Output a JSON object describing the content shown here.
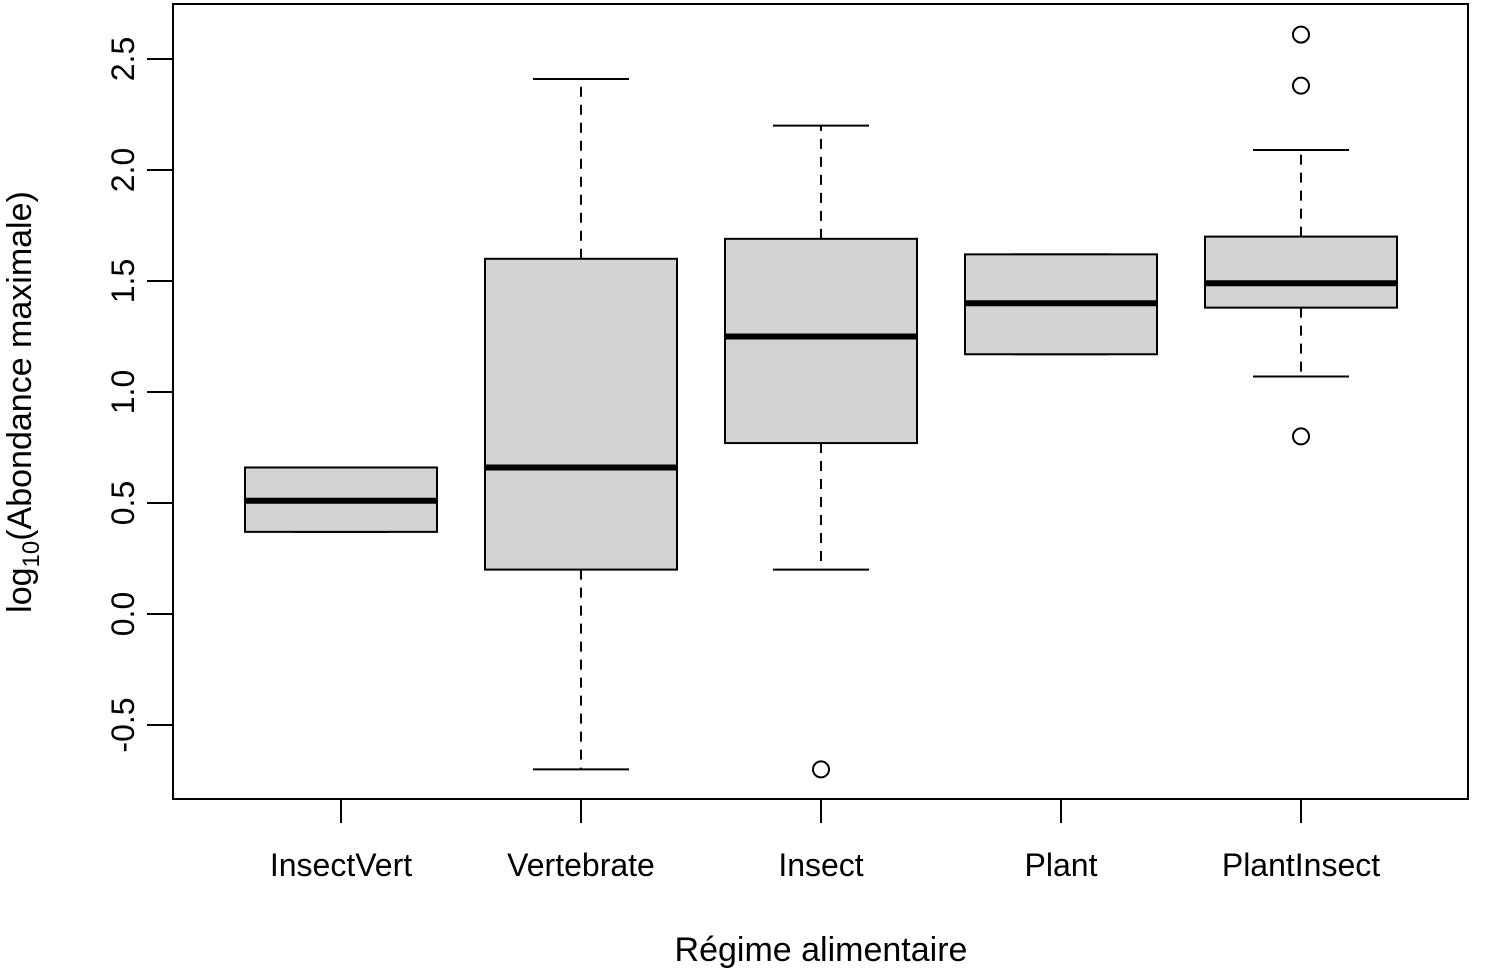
{
  "chart_data": {
    "type": "boxplot",
    "xlabel": "Régime alimentaire",
    "ylabel": {
      "prefix": "log",
      "subscript": "10",
      "suffix": "(Abondance maximale)"
    },
    "ylim": [
      -0.8,
      2.78
    ],
    "yticks": [
      {
        "value": -0.5,
        "label": "-0.5"
      },
      {
        "value": 0.0,
        "label": "0.0"
      },
      {
        "value": 0.5,
        "label": "0.5"
      },
      {
        "value": 1.0,
        "label": "1.0"
      },
      {
        "value": 1.5,
        "label": "1.5"
      },
      {
        "value": 2.0,
        "label": "2.0"
      },
      {
        "value": 2.5,
        "label": "2.5"
      }
    ],
    "categories": [
      "InsectVert",
      "Vertebrate",
      "Insect",
      "Plant",
      "PlantInsect"
    ],
    "boxes": [
      {
        "name": "InsectVert",
        "whisker_low": 0.37,
        "q1": 0.37,
        "median": 0.51,
        "q3": 0.66,
        "whisker_high": 0.66,
        "outliers": []
      },
      {
        "name": "Vertebrate",
        "whisker_low": -0.7,
        "q1": 0.2,
        "median": 0.66,
        "q3": 1.6,
        "whisker_high": 2.41,
        "outliers": []
      },
      {
        "name": "Insect",
        "whisker_low": 0.2,
        "q1": 0.77,
        "median": 1.25,
        "q3": 1.69,
        "whisker_high": 2.2,
        "outliers": [
          -0.7
        ]
      },
      {
        "name": "Plant",
        "whisker_low": 1.17,
        "q1": 1.17,
        "median": 1.4,
        "q3": 1.62,
        "whisker_high": 1.62,
        "outliers": []
      },
      {
        "name": "PlantInsect",
        "whisker_low": 1.07,
        "q1": 1.38,
        "median": 1.49,
        "q3": 1.7,
        "whisker_high": 2.09,
        "outliers": [
          0.8,
          2.38,
          2.61
        ]
      }
    ],
    "colors": {
      "box_fill": "#d3d3d3",
      "stroke": "#000000"
    },
    "grid": false,
    "legend": "none"
  }
}
